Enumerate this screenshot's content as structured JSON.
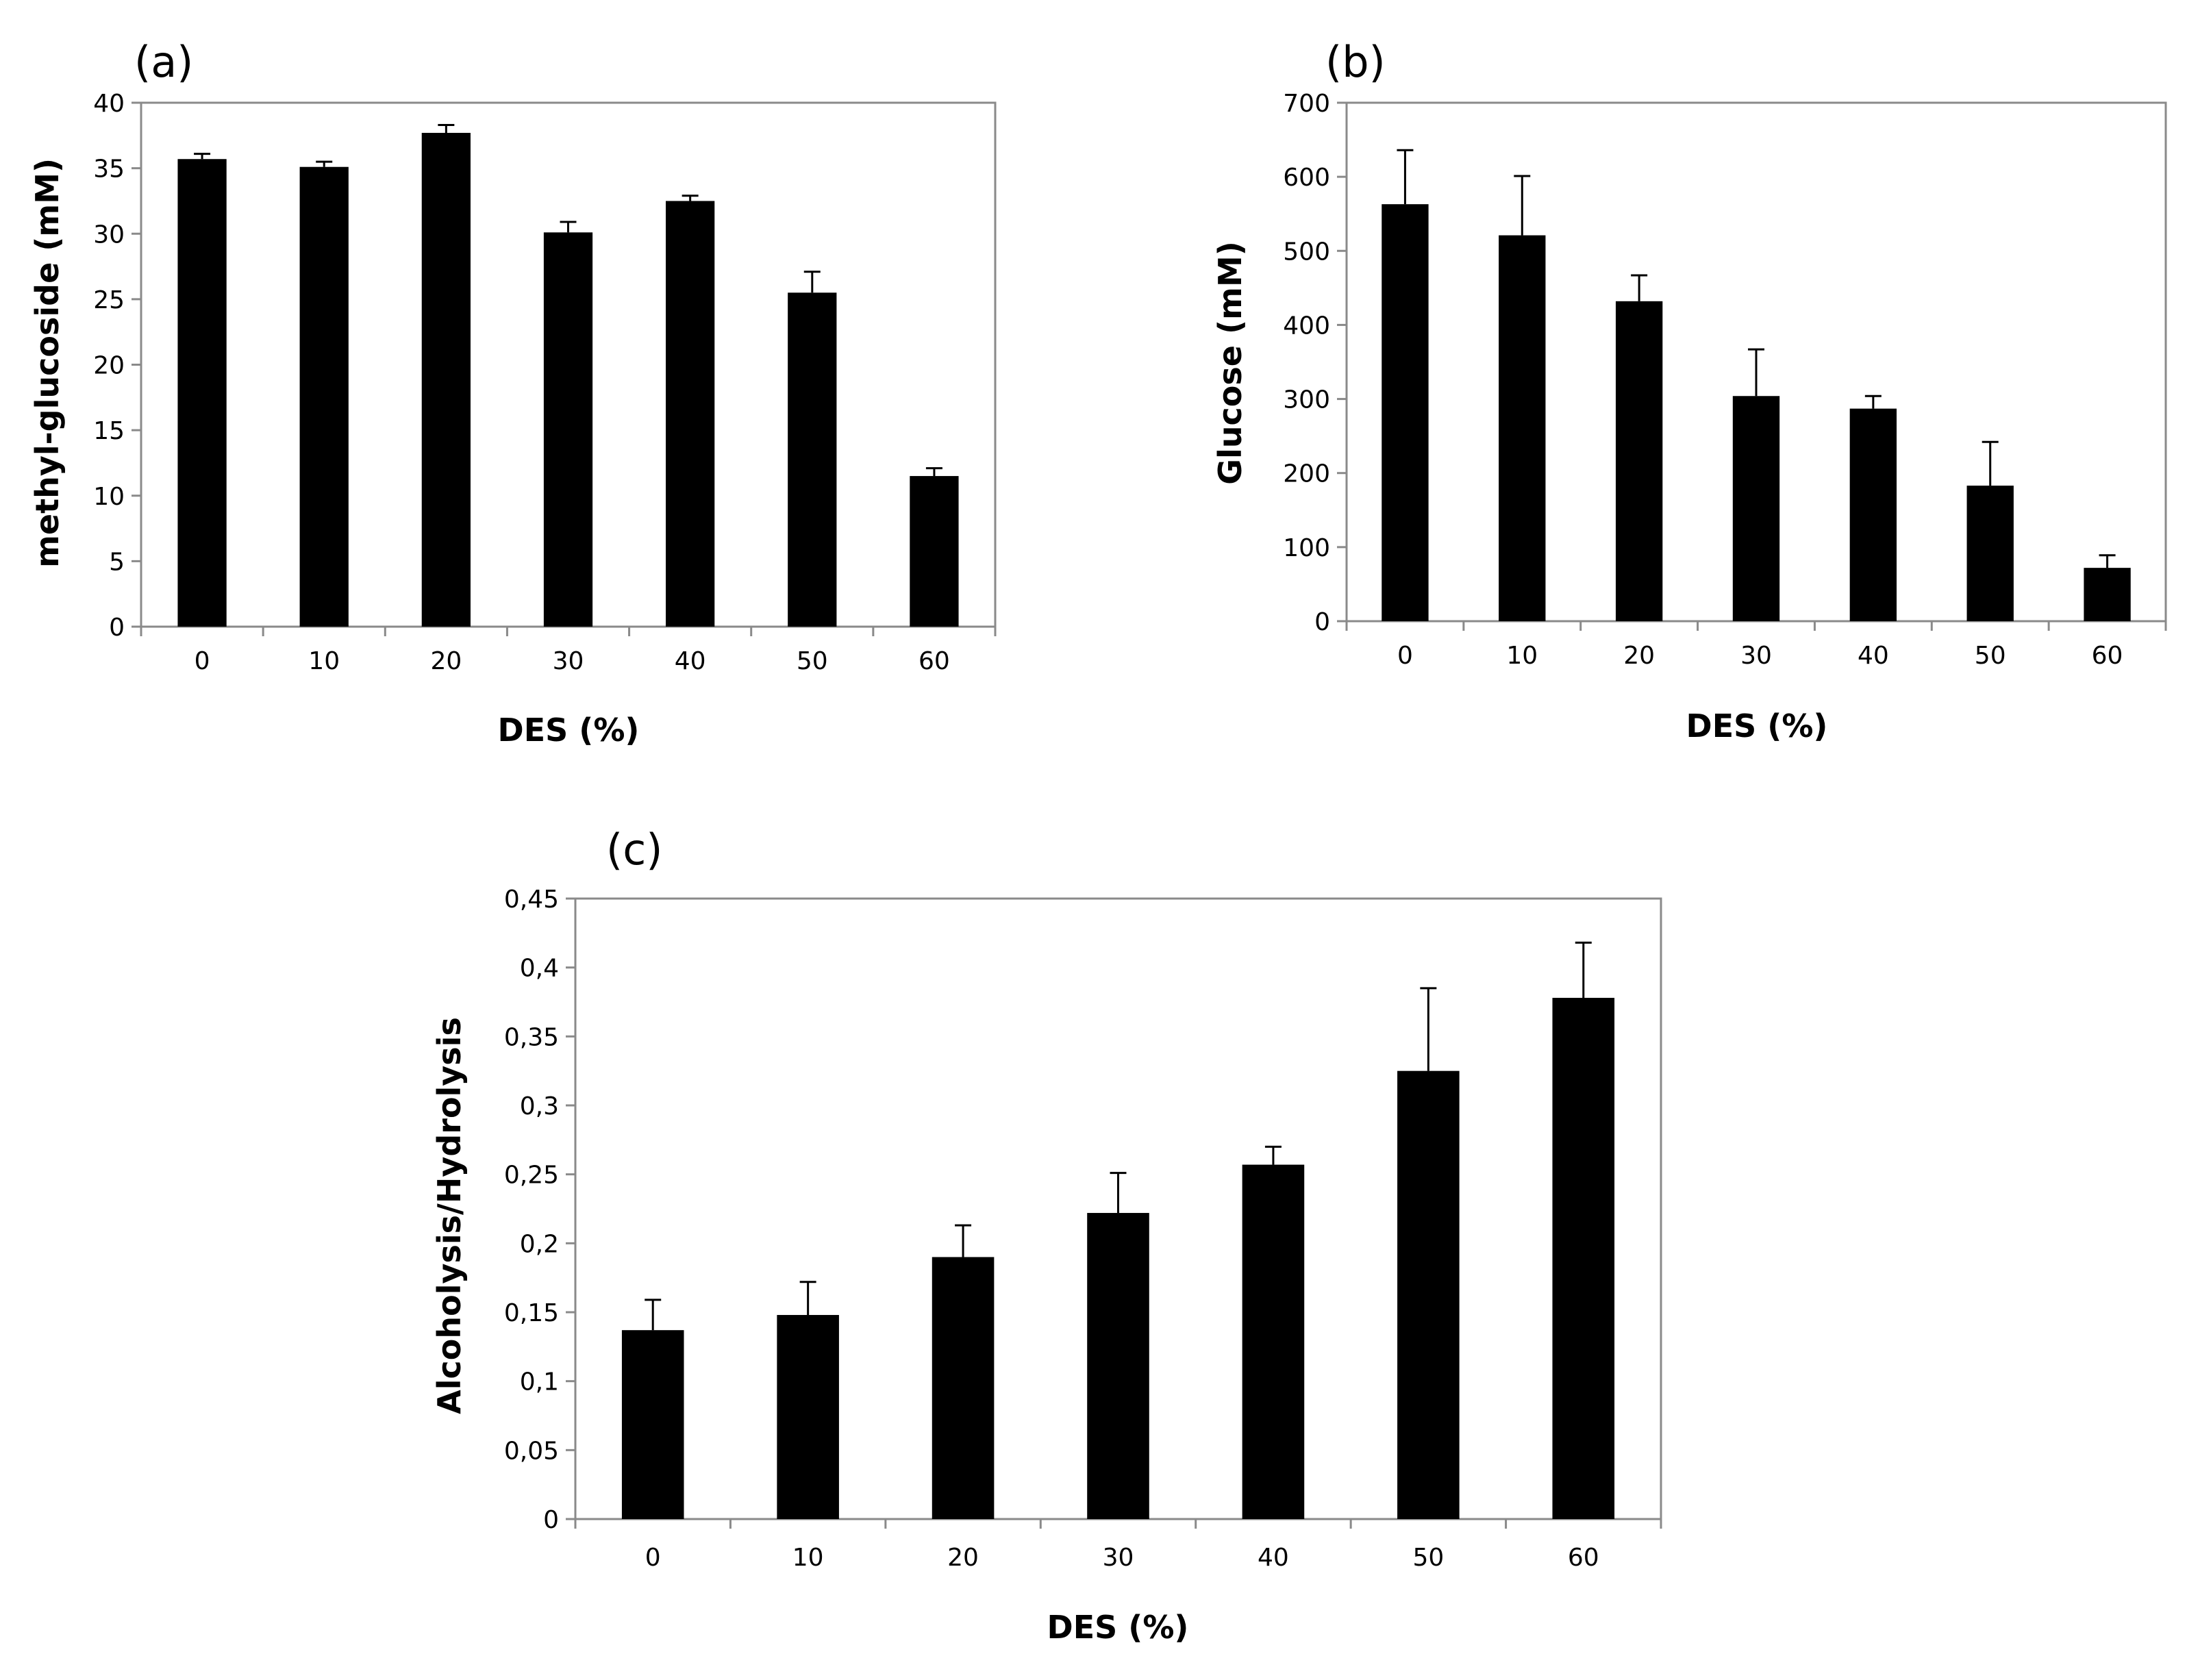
{
  "chart_data": [
    {
      "panel": "(a)",
      "type": "bar",
      "categories": [
        "0",
        "10",
        "20",
        "30",
        "40",
        "50",
        "60"
      ],
      "values": [
        35.7,
        35.1,
        37.7,
        30.1,
        32.5,
        25.5,
        11.5
      ],
      "errors": [
        0.4,
        0.4,
        0.6,
        0.8,
        0.4,
        1.6,
        0.6
      ],
      "xlabel": "DES (%)",
      "ylabel": "methyl-glucoside (mM)",
      "ylim": [
        0,
        40
      ],
      "yticks": [
        0,
        5,
        10,
        15,
        20,
        25,
        30,
        35,
        40
      ],
      "ytick_labels": [
        "0",
        "5",
        "10",
        "15",
        "20",
        "25",
        "30",
        "35",
        "40"
      ],
      "bar_color": "#000000"
    },
    {
      "panel": "(b)",
      "type": "bar",
      "categories": [
        "0",
        "10",
        "20",
        "30",
        "40",
        "50",
        "60"
      ],
      "values": [
        563,
        521,
        432,
        304,
        287,
        183,
        72
      ],
      "errors": [
        73,
        80,
        35,
        63,
        17,
        59,
        17
      ],
      "xlabel": "DES (%)",
      "ylabel": "Glucose (mM)",
      "ylim": [
        0,
        700
      ],
      "yticks": [
        0,
        100,
        200,
        300,
        400,
        500,
        600,
        700
      ],
      "ytick_labels": [
        "0",
        "100",
        "200",
        "300",
        "400",
        "500",
        "600",
        "700"
      ],
      "bar_color": "#000000"
    },
    {
      "panel": "(c)",
      "type": "bar",
      "categories": [
        "0",
        "10",
        "20",
        "30",
        "40",
        "50",
        "60"
      ],
      "values": [
        0.137,
        0.148,
        0.19,
        0.222,
        0.257,
        0.325,
        0.378
      ],
      "errors": [
        0.022,
        0.024,
        0.023,
        0.029,
        0.013,
        0.06,
        0.04
      ],
      "xlabel": "DES (%)",
      "ylabel": "Alcoholysis/Hydrolysis",
      "ylim": [
        0,
        0.45
      ],
      "yticks": [
        0,
        0.05,
        0.1,
        0.15,
        0.2,
        0.25,
        0.3,
        0.35,
        0.4,
        0.45
      ],
      "ytick_labels": [
        "0",
        "0,05",
        "0,1",
        "0,15",
        "0,2",
        "0,25",
        "0,3",
        "0,35",
        "0,4",
        "0,45"
      ],
      "bar_color": "#000000"
    }
  ]
}
